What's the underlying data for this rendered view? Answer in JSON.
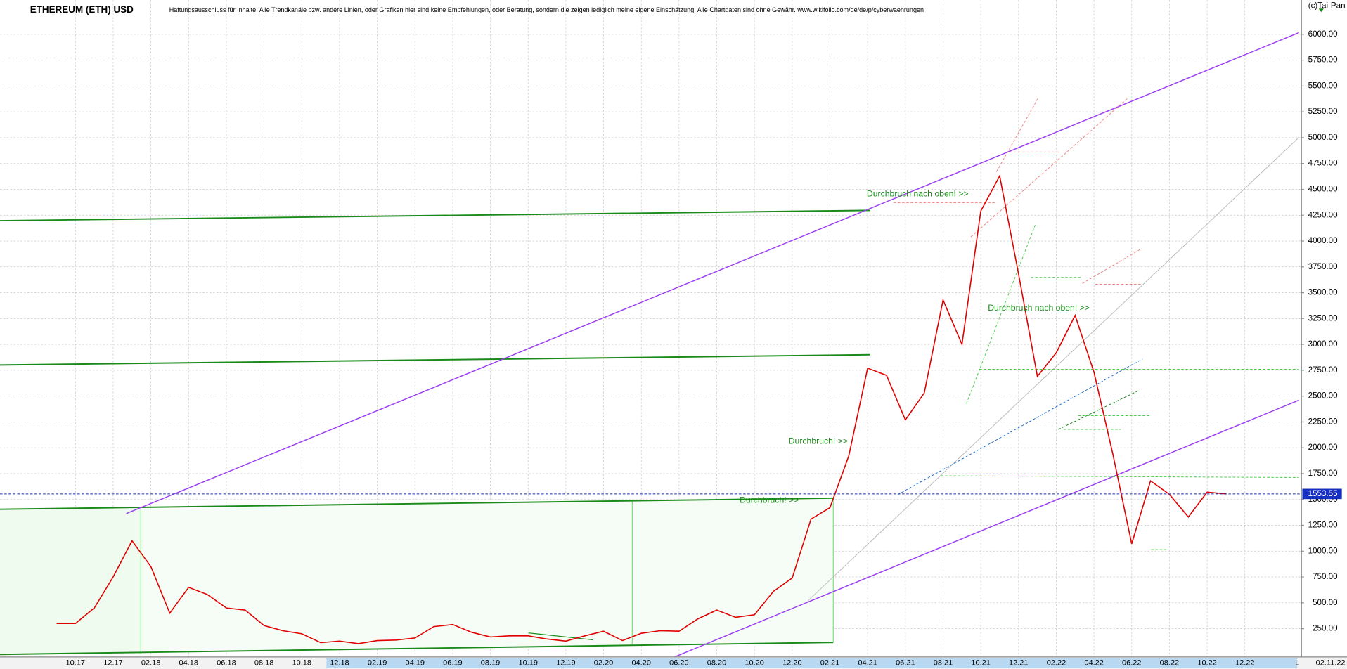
{
  "chart_data": {
    "type": "line",
    "title": "ETHEREUM (ETH) USD",
    "subtitle": "Haftungsausschluss für Inhalte: Alle Trendkanäle bzw. andere Linien, oder Grafiken hier sind keine Empfehlungen, oder Beratung, sondern die zeigen lediglich meine eigene Einschätzung. Alle Chartdaten sind ohne Gewähr.  www.wikifolio.com/de/de/p/cyberwaehrungen",
    "copyright": "(c)Tai-Pan",
    "date": "02.11.22",
    "scale_mode": "L",
    "annotations": [
      "Durchbruch nach oben! >>",
      "Durchbruch nach oben! >>",
      "Durchbruch! >>",
      "Durchbruch! >>"
    ],
    "color": "#e00000",
    "grid": true,
    "x": [
      "09.17",
      "10.17",
      "11.17",
      "12.17",
      "01.18",
      "02.18",
      "03.18",
      "04.18",
      "05.18",
      "06.18",
      "07.18",
      "08.18",
      "09.18",
      "10.18",
      "11.18",
      "12.18",
      "01.19",
      "02.19",
      "03.19",
      "04.19",
      "05.19",
      "06.19",
      "07.19",
      "08.19",
      "09.19",
      "10.19",
      "11.19",
      "12.19",
      "01.20",
      "02.20",
      "03.20",
      "04.20",
      "05.20",
      "06.20",
      "07.20",
      "08.20",
      "09.20",
      "10.20",
      "11.20",
      "12.20",
      "01.21",
      "02.21",
      "03.21",
      "04.21",
      "05.21",
      "06.21",
      "07.21",
      "08.21",
      "09.21",
      "10.21",
      "11.21",
      "12.21",
      "01.22",
      "02.22",
      "03.22",
      "04.22",
      "05.22",
      "06.22",
      "07.22",
      "08.22",
      "09.22",
      "10.22",
      "11.22"
    ],
    "values": [
      300,
      300,
      450,
      750,
      1100,
      850,
      400,
      650,
      580,
      450,
      430,
      280,
      230,
      200,
      115,
      130,
      105,
      135,
      140,
      160,
      270,
      290,
      215,
      170,
      180,
      180,
      150,
      130,
      180,
      225,
      135,
      205,
      230,
      225,
      345,
      430,
      360,
      385,
      610,
      740,
      1310,
      1420,
      1920,
      2770,
      2700,
      2270,
      2530,
      3430,
      3000,
      4290,
      4630,
      3680,
      2690,
      2920,
      3280,
      2730,
      1940,
      1070,
      1680,
      1550,
      1330,
      1570,
      1553.55
    ],
    "xlim": [
      "06.17",
      "03.23"
    ],
    "xticks": [
      "10.17",
      "12.17",
      "02.18",
      "04.18",
      "06.18",
      "08.18",
      "10.18",
      "12.18",
      "02.19",
      "04.19",
      "06.19",
      "08.19",
      "10.19",
      "12.19",
      "02.20",
      "04.20",
      "06.20",
      "08.20",
      "10.20",
      "12.20",
      "02.21",
      "04.21",
      "06.21",
      "08.21",
      "10.21",
      "12.21",
      "02.22",
      "04.22",
      "06.22",
      "08.22",
      "10.22",
      "12.22"
    ],
    "ylim": [
      -24,
      6332
    ],
    "yticks": [
      {
        "value": 250,
        "label": "250.00"
      },
      {
        "value": 500,
        "label": "500.00"
      },
      {
        "value": 750,
        "label": "750.00"
      },
      {
        "value": 1000,
        "label": "1000.00"
      },
      {
        "value": 1250,
        "label": "1250.00"
      },
      {
        "value": 1500,
        "label": "1500.00"
      },
      {
        "value": 1750,
        "label": "1750.00"
      },
      {
        "value": 2000,
        "label": "2000.00"
      },
      {
        "value": 2250,
        "label": "2250.00"
      },
      {
        "value": 2500,
        "label": "2500.00"
      },
      {
        "value": 2750,
        "label": "2750.00"
      },
      {
        "value": 3000,
        "label": "3000.00"
      },
      {
        "value": 3250,
        "label": "3250.00"
      },
      {
        "value": 3500,
        "label": "3500.00"
      },
      {
        "value": 3750,
        "label": "3750.00"
      },
      {
        "value": 4000,
        "label": "4000.00"
      },
      {
        "value": 4250,
        "label": "4250.00"
      },
      {
        "value": 4500,
        "label": "4500.00"
      },
      {
        "value": 4750,
        "label": "4750.00"
      },
      {
        "value": 5000,
        "label": "5000.00"
      },
      {
        "value": 5250,
        "label": "5250.00"
      },
      {
        "value": 5500,
        "label": "5500.00"
      },
      {
        "value": 5750,
        "label": "5750.00"
      },
      {
        "value": 6000,
        "label": "6000.00"
      }
    ],
    "last_price": 1553.55
  }
}
